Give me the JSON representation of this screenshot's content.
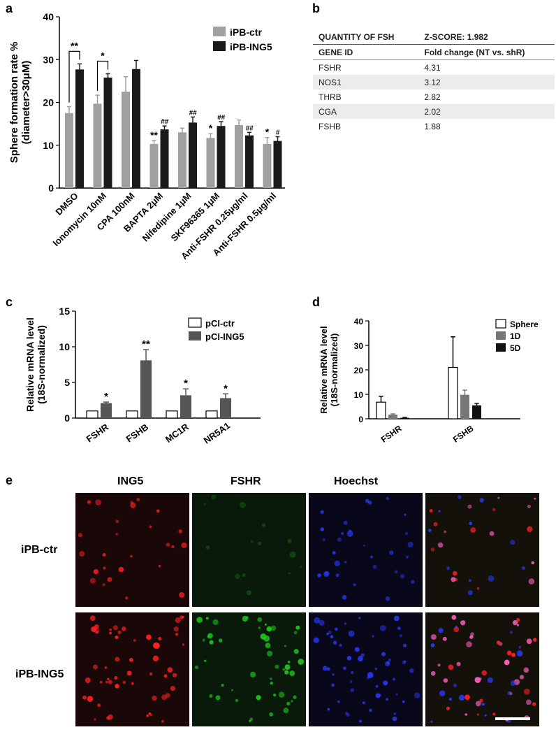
{
  "panels": {
    "a": "a",
    "b": "b",
    "c": "c",
    "d": "d",
    "e": "e"
  },
  "chart_data": [
    {
      "id": "a",
      "type": "bar",
      "ylabel": "Sphere formation rate %",
      "ylabel2": "(diameter>30μM)",
      "ylim": [
        0,
        40
      ],
      "yticks": [
        0,
        10,
        20,
        30,
        40
      ],
      "categories": [
        "DMSO",
        "Ionomycin 10nM",
        "CPA 100nM",
        "BAPTA 2μM",
        "Nifedipine 1μM",
        "SKF96365 1μM",
        "Anti-FSHR 0.25μg/ml",
        "Anti-FSHR 0.5μg/ml"
      ],
      "series": [
        {
          "name": "iPB-ctr",
          "color": "#a0a0a0",
          "values": [
            17.5,
            19.7,
            22.5,
            10.3,
            13.0,
            11.7,
            14.7,
            10.3
          ],
          "errors": [
            1.5,
            2.0,
            3.5,
            0.8,
            1.0,
            1.0,
            1.2,
            1.5
          ],
          "marks": [
            "",
            "",
            "",
            "**",
            "",
            "*",
            "",
            "*"
          ]
        },
        {
          "name": "iPB-ING5",
          "color": "#1a1a1a",
          "values": [
            27.7,
            25.8,
            27.8,
            13.7,
            15.3,
            14.5,
            12.3,
            11.0
          ],
          "errors": [
            1.3,
            0.9,
            2.0,
            0.8,
            1.3,
            1.0,
            0.7,
            1.0
          ],
          "marks": [
            "",
            "",
            "",
            "##",
            "##",
            "##",
            "##",
            "#"
          ]
        }
      ],
      "brackets": [
        {
          "category": 0,
          "label": "**"
        },
        {
          "category": 1,
          "label": "*"
        }
      ],
      "legend_position": "top-right"
    },
    {
      "id": "c",
      "type": "bar",
      "ylabel": "Relative mRNA level",
      "ylabel2": "(18S-normalized)",
      "ylim": [
        0,
        15
      ],
      "yticks": [
        0,
        5,
        10,
        15
      ],
      "categories": [
        "FSHR",
        "FSHB",
        "MC1R",
        "NR5A1"
      ],
      "series": [
        {
          "name": "pCI-ctr",
          "color": "#ffffff",
          "values": [
            1.0,
            1.0,
            1.0,
            1.0
          ],
          "errors": [
            0,
            0,
            0,
            0
          ],
          "marks": [
            "",
            "",
            "",
            ""
          ]
        },
        {
          "name": "pCI-ING5",
          "color": "#555555",
          "values": [
            2.1,
            8.1,
            3.2,
            2.8
          ],
          "errors": [
            0.15,
            1.5,
            0.9,
            0.6
          ],
          "marks": [
            "*",
            "**",
            "*",
            "*"
          ]
        }
      ],
      "legend_position": "top-right"
    },
    {
      "id": "d",
      "type": "bar",
      "ylabel": "Relative mRNA level",
      "ylabel2": "(18S-normalized)",
      "ylim": [
        0,
        40
      ],
      "yticks": [
        0,
        10,
        20,
        30,
        40
      ],
      "categories": [
        "FSHR",
        "FSHB"
      ],
      "series": [
        {
          "name": "Sphere",
          "color": "#ffffff",
          "values": [
            6.8,
            21.0
          ],
          "errors": [
            2.4,
            12.5
          ],
          "marks": [
            "",
            ""
          ]
        },
        {
          "name": "1D",
          "color": "#777777",
          "values": [
            1.7,
            9.8
          ],
          "errors": [
            0.3,
            1.9
          ],
          "marks": [
            "",
            ""
          ]
        },
        {
          "name": "5D",
          "color": "#111111",
          "values": [
            0.4,
            5.5
          ],
          "errors": [
            0.2,
            0.8
          ],
          "marks": [
            "",
            ""
          ]
        }
      ],
      "legend_position": "top-right"
    }
  ],
  "table_b": {
    "title_left": "QUANTITY OF FSH",
    "title_right": "Z-SCORE: 1.982",
    "col1": "GENE ID",
    "col2": "Fold change (NT vs. shR)",
    "rows": [
      {
        "gene": "FSHR",
        "fold": "4.31"
      },
      {
        "gene": "NOS1",
        "fold": "3.12"
      },
      {
        "gene": "THRB",
        "fold": "2.82"
      },
      {
        "gene": "CGA",
        "fold": "2.02"
      },
      {
        "gene": "FSHB",
        "fold": "1.88"
      }
    ]
  },
  "micrographs": {
    "columns": [
      "ING5",
      "FSHR",
      "Hoechst"
    ],
    "rows": [
      "iPB-ctr",
      "iPB-ING5"
    ],
    "channel_colors": {
      "ing5": "#ff2020",
      "fshr": "#20d020",
      "hoechst": "#2a3aff",
      "merge": "#ff60c0"
    }
  }
}
